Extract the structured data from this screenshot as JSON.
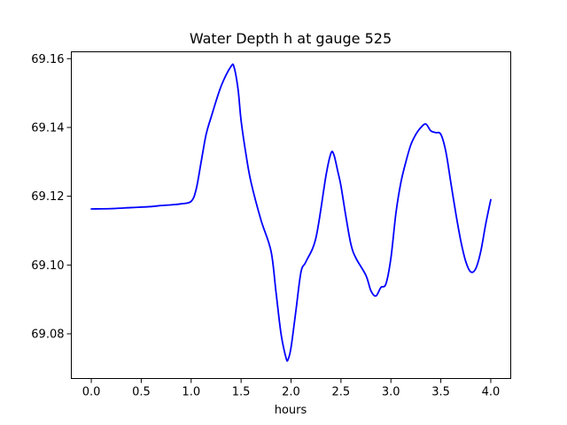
{
  "chart_data": {
    "type": "line",
    "title": "Water Depth h at gauge 525",
    "xlabel": "hours",
    "ylabel": "",
    "xlim": [
      -0.2,
      4.2
    ],
    "ylim": [
      69.067,
      69.162
    ],
    "xticks": [
      0.0,
      0.5,
      1.0,
      1.5,
      2.0,
      2.5,
      3.0,
      3.5,
      4.0
    ],
    "xtick_labels": [
      "0.0",
      "0.5",
      "1.0",
      "1.5",
      "2.0",
      "2.5",
      "3.0",
      "3.5",
      "4.0"
    ],
    "yticks": [
      69.08,
      69.1,
      69.12,
      69.14,
      69.16
    ],
    "ytick_labels": [
      "69.08",
      "69.10",
      "69.12",
      "69.14",
      "69.16"
    ],
    "grid": false,
    "series": [
      {
        "color": "#0000ff",
        "x": [
          0.0,
          0.2,
          0.4,
          0.6,
          0.7,
          0.8,
          0.9,
          1.0,
          1.05,
          1.1,
          1.15,
          1.2,
          1.3,
          1.4,
          1.43,
          1.47,
          1.5,
          1.55,
          1.6,
          1.7,
          1.8,
          1.85,
          1.9,
          1.95,
          1.97,
          2.0,
          2.05,
          2.1,
          2.15,
          2.25,
          2.35,
          2.4,
          2.43,
          2.47,
          2.5,
          2.55,
          2.6,
          2.65,
          2.75,
          2.8,
          2.85,
          2.9,
          2.95,
          3.0,
          3.05,
          3.1,
          3.15,
          3.2,
          3.25,
          3.3,
          3.35,
          3.4,
          3.45,
          3.5,
          3.55,
          3.6,
          3.65,
          3.7,
          3.75,
          3.8,
          3.85,
          3.9,
          3.95,
          4.0
        ],
        "y": [
          69.1163,
          69.1164,
          69.1167,
          69.117,
          69.1173,
          69.1175,
          69.1178,
          69.1185,
          69.122,
          69.13,
          69.138,
          69.143,
          69.152,
          69.1578,
          69.1575,
          69.151,
          69.142,
          69.132,
          69.124,
          69.113,
          69.104,
          69.092,
          69.08,
          69.073,
          69.0725,
          69.076,
          69.087,
          69.098,
          69.101,
          69.108,
          69.126,
          69.1325,
          69.132,
          69.127,
          69.123,
          69.114,
          69.106,
          69.102,
          69.097,
          69.0925,
          69.091,
          69.0935,
          69.0945,
          69.102,
          69.115,
          69.124,
          69.13,
          69.135,
          69.138,
          69.14,
          69.141,
          69.139,
          69.1385,
          69.138,
          69.133,
          69.124,
          69.115,
          69.107,
          69.101,
          69.098,
          69.099,
          69.104,
          69.112,
          69.119
        ]
      }
    ]
  }
}
